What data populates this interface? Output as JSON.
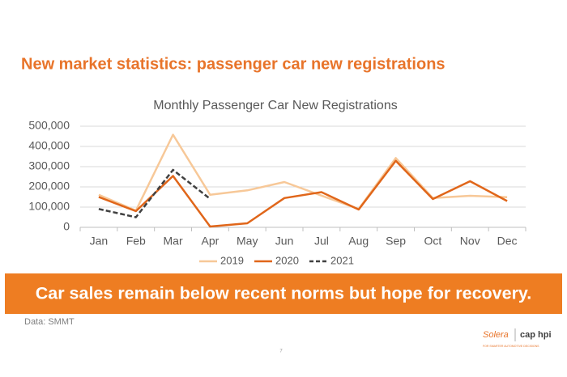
{
  "slide_title": "New market statistics: passenger car new registrations",
  "banner": "Car sales remain below recent norms but hope for recovery.",
  "source": "Data: SMMT",
  "page_number": "7",
  "logo": {
    "brand": "Solera",
    "partner": "cap hpi",
    "tagline": "FOR SMARTER AUTOMOTIVE DECISIONS"
  },
  "chart_data": {
    "type": "line",
    "title": "Monthly Passenger Car New Registrations",
    "categories": [
      "Jan",
      "Feb",
      "Mar",
      "Apr",
      "May",
      "Jun",
      "Jul",
      "Aug",
      "Sep",
      "Oct",
      "Nov",
      "Dec"
    ],
    "series": [
      {
        "name": "2019",
        "color": "#f7c898",
        "dashed": false,
        "values": [
          161000,
          83000,
          458000,
          161000,
          183000,
          224000,
          157000,
          91000,
          343000,
          145000,
          156000,
          149000
        ]
      },
      {
        "name": "2020",
        "color": "#e0661a",
        "dashed": false,
        "values": [
          150000,
          80000,
          254000,
          4000,
          20000,
          145000,
          174000,
          88000,
          329000,
          140000,
          228000,
          130000
        ]
      },
      {
        "name": "2021",
        "color": "#404040",
        "dashed": true,
        "values": [
          91000,
          50000,
          284000,
          141000,
          null,
          null,
          null,
          null,
          null,
          null,
          null,
          null
        ]
      }
    ],
    "ylim": [
      0,
      500000
    ],
    "yticks": [
      0,
      {
        "value": 100000,
        "label": "100,000"
      },
      {
        "value": 200000,
        "label": "200,000"
      },
      {
        "value": 300000,
        "label": "300,000"
      },
      {
        "value": 400000,
        "label": "400,000"
      },
      {
        "value": 500000,
        "label": "500,000"
      }
    ],
    "grid": true,
    "legend": "bottom"
  }
}
